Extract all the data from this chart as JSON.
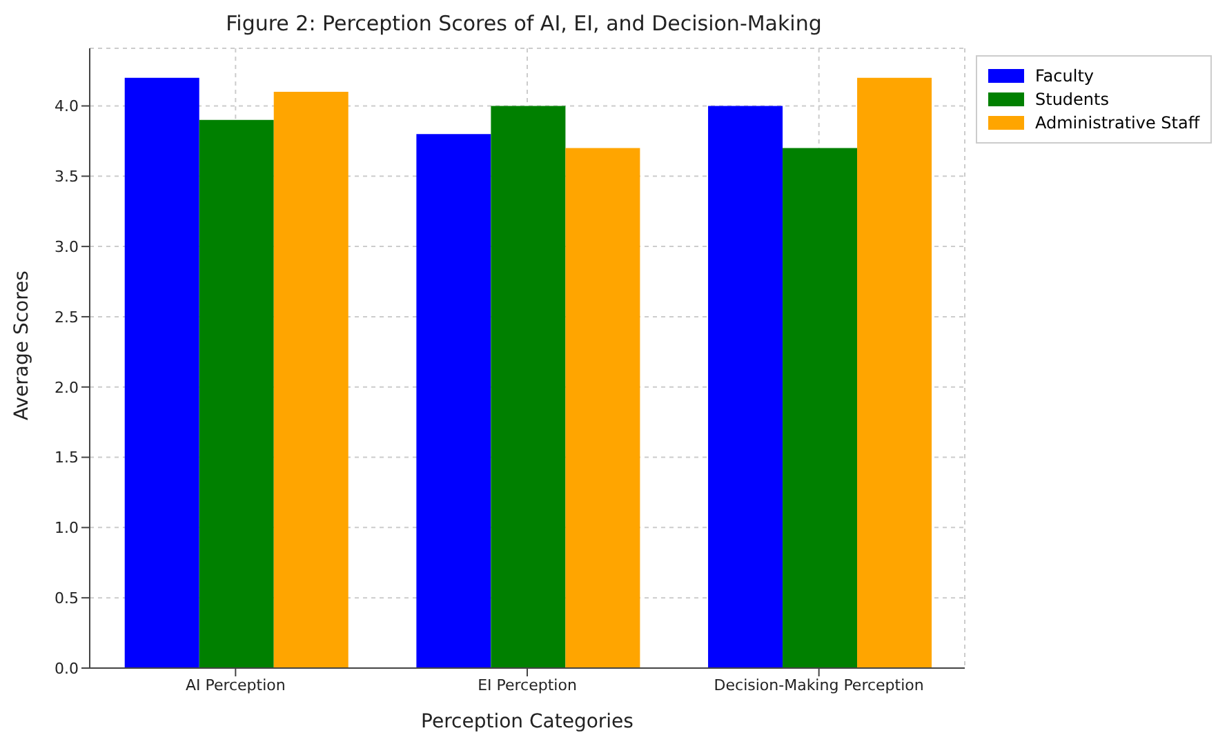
{
  "chart_data": {
    "type": "bar",
    "title": "Figure 2: Perception Scores of AI, EI, and Decision-Making",
    "xlabel": "Perception Categories",
    "ylabel": "Average Scores",
    "categories": [
      "AI Perception",
      "EI Perception",
      "Decision-Making Perception"
    ],
    "series": [
      {
        "name": "Faculty",
        "color": "#0000ff",
        "values": [
          4.2,
          3.8,
          4.0
        ]
      },
      {
        "name": "Students",
        "color": "#008000",
        "values": [
          3.9,
          4.0,
          3.7
        ]
      },
      {
        "name": "Administrative Staff",
        "color": "#ffa500",
        "values": [
          4.1,
          3.7,
          4.2
        ]
      }
    ],
    "ylim": [
      0,
      4.41
    ],
    "yticks": [
      {
        "value": 0,
        "label": "0.0"
      },
      0.5,
      {
        "value": 1,
        "label": "1.0"
      },
      1.5,
      {
        "value": 2,
        "label": "2.0"
      },
      2.5,
      {
        "value": 3,
        "label": "3.0"
      },
      3.5,
      {
        "value": 4,
        "label": "4.0"
      }
    ],
    "grid": true,
    "legend": "top right"
  }
}
